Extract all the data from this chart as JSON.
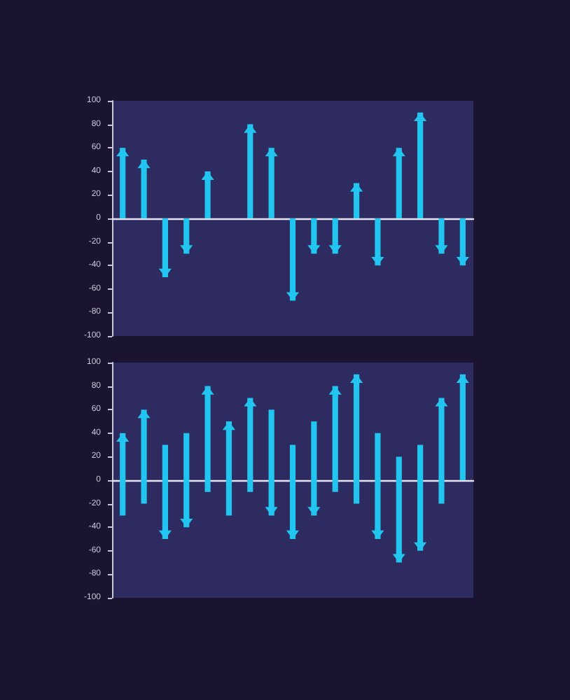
{
  "chart_data": [
    {
      "type": "bar",
      "categories": [
        null,
        null,
        null,
        null,
        null,
        null,
        null,
        null,
        null,
        null,
        null,
        null,
        null,
        null,
        null,
        null,
        null
      ],
      "values": [
        60,
        50,
        -50,
        -30,
        40,
        null,
        80,
        60,
        -70,
        -30,
        -30,
        30,
        -40,
        60,
        90,
        -30,
        -40
      ],
      "color": "#22c5ef",
      "ylim": [
        -100,
        100
      ],
      "yticks": [
        -100,
        -80,
        -60,
        -40,
        -20,
        0,
        20,
        40,
        60,
        80,
        100
      ],
      "tick_labels": "y"
    },
    {
      "type": "bar",
      "categories": [
        null,
        null,
        null,
        null,
        null,
        null,
        null,
        null,
        null,
        null,
        null,
        null,
        null,
        null,
        null,
        null,
        null
      ],
      "base": [
        -30,
        -20,
        30,
        40,
        -10,
        -30,
        -10,
        60,
        30,
        50,
        -10,
        -20,
        40,
        20,
        30,
        -20,
        0
      ],
      "values": [
        70,
        80,
        -80,
        -80,
        90,
        80,
        80,
        -90,
        -80,
        -80,
        90,
        110,
        -90,
        -90,
        -90,
        90,
        90
      ],
      "color": "#22c5ef",
      "ylim": [
        -100,
        100
      ],
      "yticks": [
        -100,
        -80,
        -60,
        -40,
        -20,
        0,
        20,
        40,
        60,
        80,
        100
      ],
      "tick_labels": "y"
    }
  ]
}
